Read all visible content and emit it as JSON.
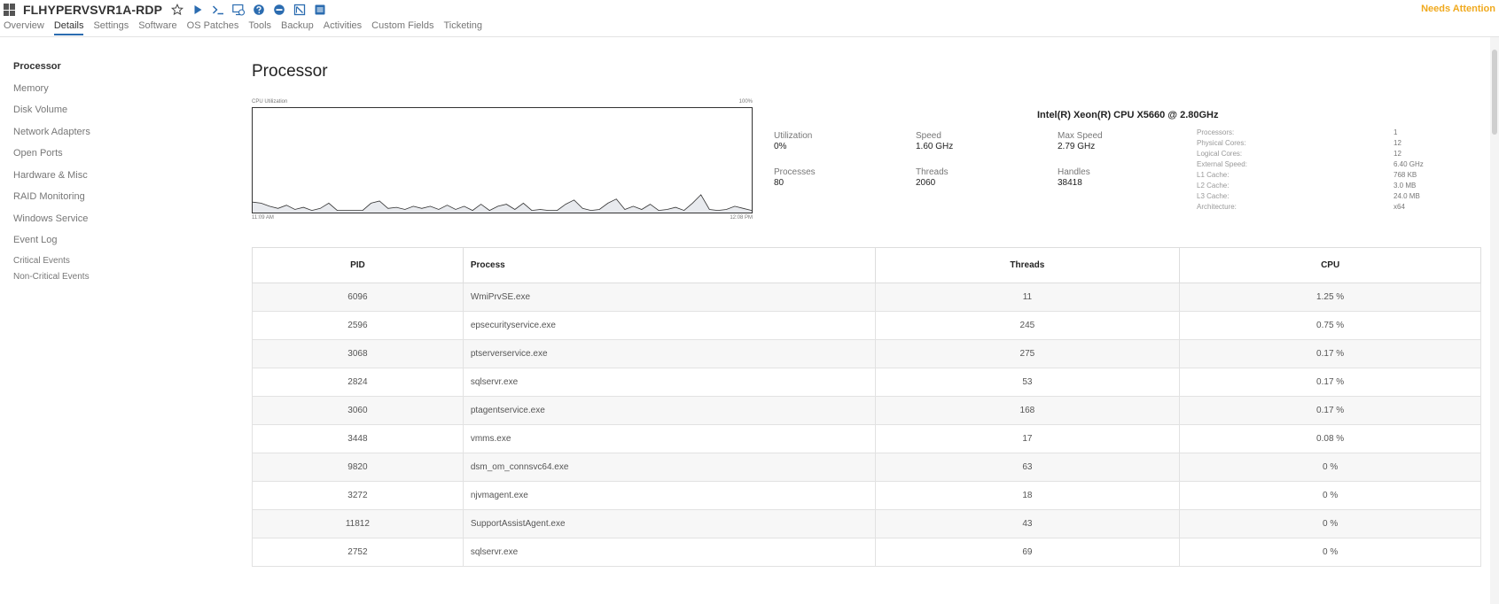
{
  "header": {
    "device_name": "FLHYPERVSVR1A-RDP",
    "status": "Needs Attention",
    "status_color": "#f0a91d",
    "icons": [
      "star-icon",
      "play-icon",
      "terminal-icon",
      "remote-desktop-icon",
      "help-circle-icon",
      "minus-circle-icon",
      "no-entry-icon",
      "menu-icon"
    ]
  },
  "tabs": [
    {
      "label": "Overview",
      "active": false
    },
    {
      "label": "Details",
      "active": true
    },
    {
      "label": "Settings",
      "active": false
    },
    {
      "label": "Software",
      "active": false
    },
    {
      "label": "OS Patches",
      "active": false
    },
    {
      "label": "Tools",
      "active": false
    },
    {
      "label": "Backup",
      "active": false
    },
    {
      "label": "Activities",
      "active": false
    },
    {
      "label": "Custom Fields",
      "active": false
    },
    {
      "label": "Ticketing",
      "active": false
    }
  ],
  "sidebar": {
    "items": [
      {
        "label": "Processor",
        "active": true
      },
      {
        "label": "Memory",
        "active": false
      },
      {
        "label": "Disk Volume",
        "active": false
      },
      {
        "label": "Network Adapters",
        "active": false
      },
      {
        "label": "Open Ports",
        "active": false
      },
      {
        "label": "Hardware & Misc",
        "active": false
      },
      {
        "label": "RAID Monitoring",
        "active": false
      },
      {
        "label": "Windows Service",
        "active": false
      },
      {
        "label": "Event Log",
        "active": false
      }
    ],
    "subitems": [
      {
        "label": "Critical Events"
      },
      {
        "label": "Non-Critical Events"
      }
    ]
  },
  "main": {
    "title": "Processor"
  },
  "chart_data": {
    "type": "area",
    "title": "CPU Utilization",
    "ylim_label": "100%",
    "ylim": [
      0,
      100
    ],
    "x_start_label": "11:09 AM",
    "x_end_label": "12:08 PM",
    "values": [
      10,
      9,
      6,
      4,
      7,
      3,
      5,
      2,
      4,
      9,
      2,
      2,
      2,
      2,
      9,
      11,
      4,
      5,
      3,
      6,
      4,
      6,
      3,
      7,
      3,
      6,
      2,
      8,
      2,
      6,
      8,
      3,
      9,
      2,
      3,
      2,
      2,
      8,
      12,
      4,
      2,
      3,
      9,
      13,
      3,
      6,
      3,
      8,
      2,
      3,
      5,
      2,
      9,
      17,
      3,
      2,
      3,
      6,
      4,
      2
    ]
  },
  "cpu": {
    "name": "Intel(R) Xeon(R) CPU X5660 @ 2.80GHz",
    "stats": [
      {
        "label": "Utilization",
        "value": "0%"
      },
      {
        "label": "Speed",
        "value": "1.60 GHz"
      },
      {
        "label": "Max Speed",
        "value": "2.79 GHz"
      },
      {
        "label": "Processes",
        "value": "80"
      },
      {
        "label": "Threads",
        "value": "2060"
      },
      {
        "label": "Handles",
        "value": "38418"
      }
    ],
    "specs": [
      {
        "label": "Processors:",
        "value": "1"
      },
      {
        "label": "Physical Cores:",
        "value": "12"
      },
      {
        "label": "Logical Cores:",
        "value": "12"
      },
      {
        "label": "External Speed:",
        "value": "6.40 GHz"
      },
      {
        "label": "L1 Cache:",
        "value": "768 KB"
      },
      {
        "label": "L2 Cache:",
        "value": "3.0 MB"
      },
      {
        "label": "L3 Cache:",
        "value": "24.0 MB"
      },
      {
        "label": "Architecture:",
        "value": "x64"
      }
    ]
  },
  "processes": {
    "columns": [
      "PID",
      "Process",
      "Threads",
      "CPU"
    ],
    "rows": [
      {
        "pid": "6096",
        "process": "WmiPrvSE.exe",
        "threads": "11",
        "cpu": "1.25 %"
      },
      {
        "pid": "2596",
        "process": "epsecurityservice.exe",
        "threads": "245",
        "cpu": "0.75 %"
      },
      {
        "pid": "3068",
        "process": "ptserverservice.exe",
        "threads": "275",
        "cpu": "0.17 %"
      },
      {
        "pid": "2824",
        "process": "sqlservr.exe",
        "threads": "53",
        "cpu": "0.17 %"
      },
      {
        "pid": "3060",
        "process": "ptagentservice.exe",
        "threads": "168",
        "cpu": "0.17 %"
      },
      {
        "pid": "3448",
        "process": "vmms.exe",
        "threads": "17",
        "cpu": "0.08 %"
      },
      {
        "pid": "9820",
        "process": "dsm_om_connsvc64.exe",
        "threads": "63",
        "cpu": "0 %"
      },
      {
        "pid": "3272",
        "process": "njvmagent.exe",
        "threads": "18",
        "cpu": "0 %"
      },
      {
        "pid": "11812",
        "process": "SupportAssistAgent.exe",
        "threads": "43",
        "cpu": "0 %"
      },
      {
        "pid": "2752",
        "process": "sqlservr.exe",
        "threads": "69",
        "cpu": "0 %"
      }
    ]
  }
}
